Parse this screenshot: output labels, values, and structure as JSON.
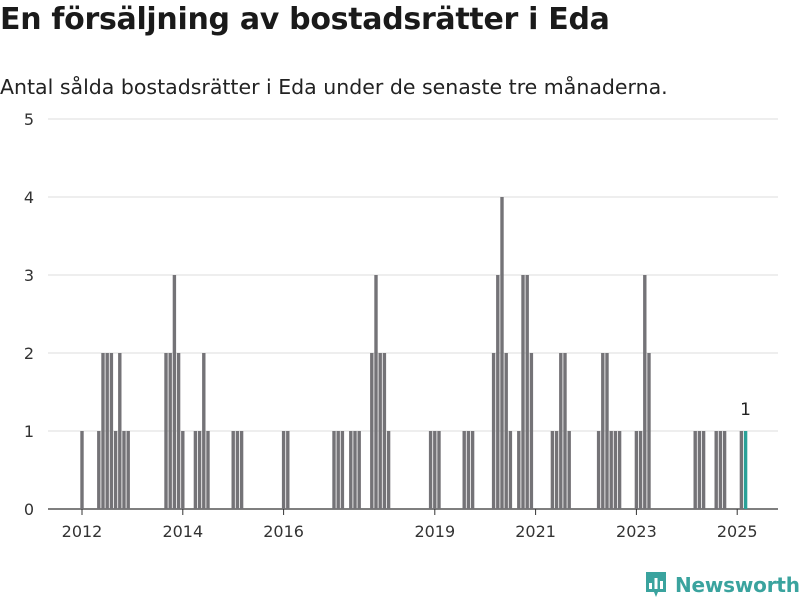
{
  "header": {
    "title": "En försäljning av bostadsrätter i Eda",
    "subtitle": "Antal sålda bostadsrätter i Eda under de senaste tre månaderna."
  },
  "brand": {
    "name": "Newsworthy",
    "icon": "newsworthy-logo-icon",
    "color": "#3aa39e"
  },
  "chart_data": {
    "type": "bar",
    "title": "En försäljning av bostadsrätter i Eda",
    "subtitle": "Antal sålda bostadsrätter i Eda under de senaste tre månaderna.",
    "xlabel": "",
    "ylabel": "",
    "ylim": [
      0,
      5
    ],
    "yticks": [
      "0",
      "1",
      "2",
      "3",
      "4",
      "5"
    ],
    "xticks": [
      {
        "label": "2012",
        "x": "2012-01"
      },
      {
        "label": "2014",
        "x": "2014-01"
      },
      {
        "label": "2016",
        "x": "2016-01"
      },
      {
        "label": "2019",
        "x": "2019-01"
      },
      {
        "label": "2021",
        "x": "2021-01"
      },
      {
        "label": "2023",
        "x": "2023-01"
      },
      {
        "label": "2025",
        "x": "2025-01"
      }
    ],
    "grid": true,
    "colors": {
      "bar": "#747377",
      "highlight": "#2aa198"
    },
    "annotation": {
      "x": "2025-03",
      "text": "1"
    },
    "series": [
      {
        "x": [
          "2012-01",
          "2012-05",
          "2012-06",
          "2012-07",
          "2012-08",
          "2012-09",
          "2012-10",
          "2012-11",
          "2012-12",
          "2013-09",
          "2013-10",
          "2013-11",
          "2013-12",
          "2014-01",
          "2014-04",
          "2014-05",
          "2014-06",
          "2014-07",
          "2015-01",
          "2015-02",
          "2015-03",
          "2016-01",
          "2016-02",
          "2017-01",
          "2017-02",
          "2017-03",
          "2017-05",
          "2017-06",
          "2017-07",
          "2017-10",
          "2017-11",
          "2017-12",
          "2018-01",
          "2018-02",
          "2019-00",
          "2019-01",
          "2019-02",
          "2019-08",
          "2019-09",
          "2019-10",
          "2020-03",
          "2020-04",
          "2020-05",
          "2020-06",
          "2020-07",
          "2020-09",
          "2020-10",
          "2020-11",
          "2020-12",
          "2021-05",
          "2021-06",
          "2021-07",
          "2021-08",
          "2021-09",
          "2022-04",
          "2022-05",
          "2022-06",
          "2022-07",
          "2022-08",
          "2022-09",
          "2023-01",
          "2023-02",
          "2023-03",
          "2023-04",
          "2024-03",
          "2024-04",
          "2024-05",
          "2024-08",
          "2024-09",
          "2024-10",
          "2025-02",
          "2025-03"
        ],
        "values": [
          1,
          1,
          2,
          2,
          2,
          1,
          2,
          1,
          1,
          2,
          2,
          3,
          2,
          1,
          1,
          1,
          2,
          1,
          1,
          1,
          1,
          1,
          1,
          1,
          1,
          1,
          1,
          1,
          1,
          2,
          3,
          2,
          2,
          1,
          1,
          1,
          1,
          1,
          1,
          1,
          2,
          3,
          4,
          2,
          1,
          1,
          3,
          3,
          2,
          1,
          1,
          2,
          2,
          1,
          1,
          2,
          2,
          1,
          1,
          1,
          1,
          1,
          3,
          2,
          1,
          1,
          1,
          1,
          1,
          1,
          1,
          1
        ]
      }
    ]
  }
}
